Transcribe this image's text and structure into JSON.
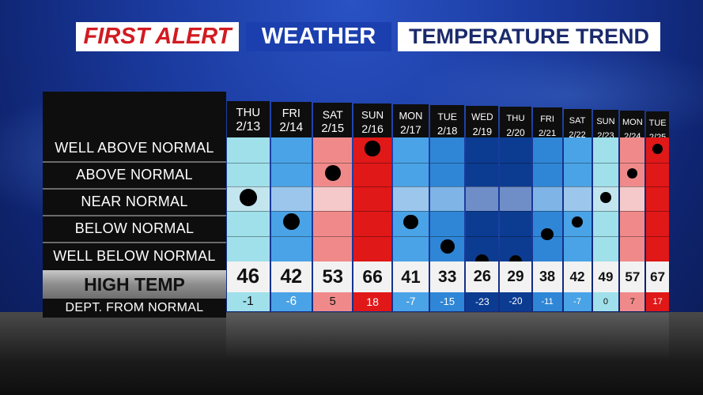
{
  "header": {
    "first": "FIRST ALERT",
    "weather": "WEATHER",
    "trend": "TEMPERATURE TREND"
  },
  "rows": {
    "labels": [
      "WELL ABOVE NORMAL",
      "ABOVE NORMAL",
      "NEAR NORMAL",
      "BELOW NORMAL",
      "WELL BELOW NORMAL"
    ],
    "high_temp": "HIGH TEMP",
    "dept": "DEPT. FROM NORMAL"
  },
  "colors": {
    "well_above": "#e01818",
    "above": "#f08a8a",
    "near_warm": "#f5c9c9",
    "near_light": "#c3e6ee",
    "light_blue": "#9fe0ea",
    "mid_blue": "#4aa3e6",
    "dark_blue": "#0c3c92"
  },
  "days": [
    {
      "name": "THU",
      "date": "2/13",
      "high": "46",
      "dept": "-1",
      "level": 3
    },
    {
      "name": "FRI",
      "date": "2/14",
      "high": "42",
      "dept": "-6",
      "level": 4
    },
    {
      "name": "SAT",
      "date": "2/15",
      "high": "53",
      "dept": "5",
      "level": 2
    },
    {
      "name": "SUN",
      "date": "2/16",
      "high": "66",
      "dept": "18",
      "level": 1
    },
    {
      "name": "MON",
      "date": "2/17",
      "high": "41",
      "dept": "-7",
      "level": 4
    },
    {
      "name": "TUE",
      "date": "2/18",
      "high": "33",
      "dept": "-15",
      "level": 5
    },
    {
      "name": "WED",
      "date": "2/19",
      "high": "26",
      "dept": "-23",
      "level": 5.6
    },
    {
      "name": "THU",
      "date": "2/20",
      "high": "29",
      "dept": "-20",
      "level": 5.6
    },
    {
      "name": "FRI",
      "date": "2/21",
      "high": "38",
      "dept": "-11",
      "level": 4.5
    },
    {
      "name": "SAT",
      "date": "2/22",
      "high": "42",
      "dept": "-7",
      "level": 4
    },
    {
      "name": "SUN",
      "date": "2/23",
      "high": "49",
      "dept": "0",
      "level": 3
    },
    {
      "name": "MON",
      "date": "2/24",
      "high": "57",
      "dept": "7",
      "level": 2
    },
    {
      "name": "TUE",
      "date": "2/25",
      "high": "67",
      "dept": "17",
      "level": 1
    }
  ]
}
